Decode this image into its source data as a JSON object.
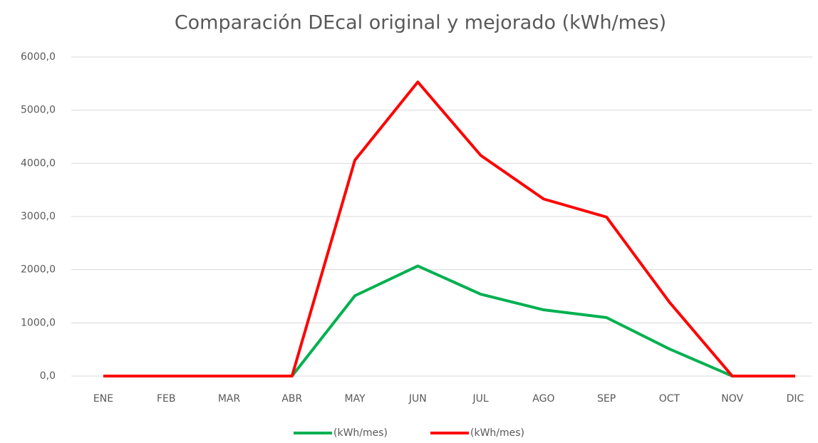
{
  "chart_data": {
    "type": "line",
    "title": "Comparación DEcal original y mejorado (kWh/mes)",
    "categories": [
      "ENE",
      "FEB",
      "MAR",
      "ABR",
      "MAY",
      "JUN",
      "JUL",
      "AGO",
      "SEP",
      "OCT",
      "NOV",
      "DIC"
    ],
    "series": [
      {
        "name": "(kWh/mes)",
        "color": "#00b050",
        "values": [
          0,
          0,
          0,
          0,
          1510,
          2070,
          1540,
          1245,
          1100,
          510,
          0,
          0
        ]
      },
      {
        "name": "(kWh/mes)",
        "color": "#ff0000",
        "values": [
          0,
          0,
          0,
          0,
          4060,
          5530,
          4150,
          3330,
          2990,
          1390,
          0,
          0
        ]
      }
    ],
    "ylim": [
      0,
      6000
    ],
    "yticks": [
      {
        "value": 0,
        "label": "0,0"
      },
      {
        "value": 1000,
        "label": "1000,0"
      },
      {
        "value": 2000,
        "label": "2000,0"
      },
      {
        "value": 3000,
        "label": "3000,0"
      },
      {
        "value": 4000,
        "label": "4000,0"
      },
      {
        "value": 5000,
        "label": "5000,0"
      },
      {
        "value": 6000,
        "label": "6000,0"
      }
    ],
    "grid": true,
    "legend": "bottom"
  }
}
